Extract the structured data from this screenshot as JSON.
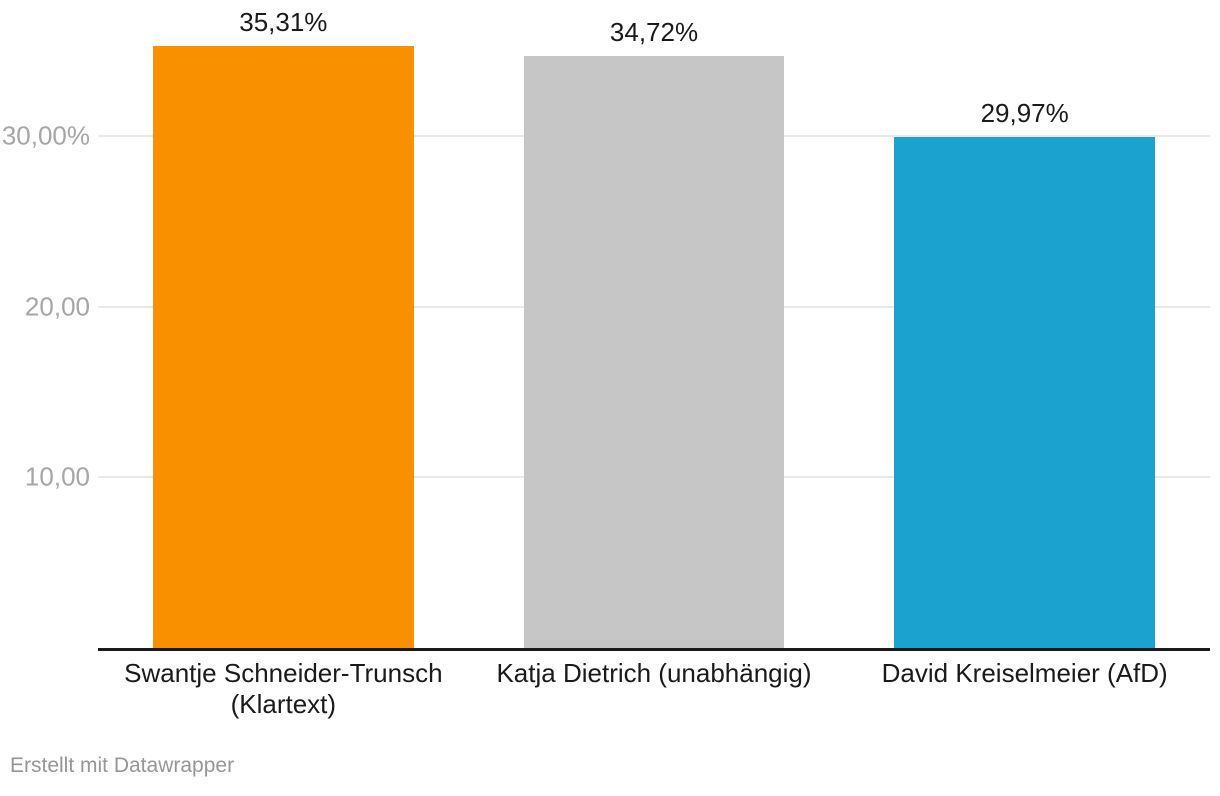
{
  "chart_data": {
    "type": "bar",
    "title": "",
    "xlabel": "",
    "ylabel": "",
    "categories": [
      "Swantje Schneider-Trunsch (Klartext)",
      "Katja Dietrich (unabhängig)",
      "David Kreiselmeier (AfD)"
    ],
    "values": [
      35.31,
      34.72,
      29.97
    ],
    "value_labels": [
      "35,31%",
      "34,72%",
      "29,97%"
    ],
    "bar_colors": [
      "#F99000",
      "#C6C6C6",
      "#1CA2CE"
    ],
    "ylim": [
      0,
      38
    ],
    "y_ticks": [
      {
        "value": 30,
        "label": "30,00%"
      },
      {
        "value": 20,
        "label": "20,00"
      },
      {
        "value": 10,
        "label": "10,00"
      }
    ],
    "grid": true,
    "legend": "none"
  },
  "footer": {
    "credit": "Erstellt mit Datawrapper"
  },
  "colors": {
    "background": "#FFFFFF",
    "grid_line": "#E9E9E9",
    "axis_line": "#1A1A1A",
    "tick_label": "#A6A6A6",
    "value_label": "#1A1A1A",
    "category_label": "#1A1A1A",
    "credit_text": "#969696"
  }
}
